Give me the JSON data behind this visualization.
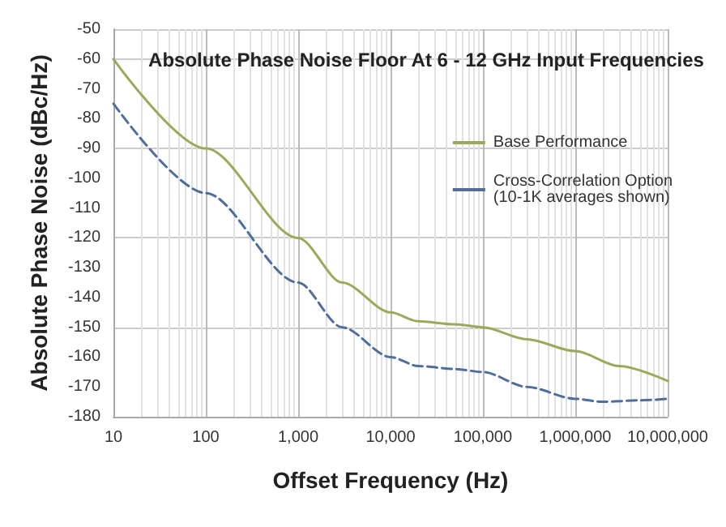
{
  "chart_data": {
    "type": "line",
    "title": "Absolute Phase Noise Floor At 6 - 12 GHz Input Frequencies",
    "xlabel": "Offset Frequency (Hz)",
    "ylabel": "Absolute Phase Noise (dBc/Hz)",
    "log": "x",
    "grid": true,
    "legend": "top right",
    "marker": "none",
    "xlim": [
      10,
      10000000
    ],
    "xticks": [
      {
        "value": 10,
        "label": "10"
      },
      {
        "value": 100,
        "label": "100"
      },
      {
        "value": 1000,
        "label": "1,000"
      },
      {
        "value": 10000,
        "label": "10,000"
      },
      {
        "value": 100000,
        "label": "100,000"
      },
      {
        "value": 1000000,
        "label": "1,000,000"
      },
      {
        "value": 10000000,
        "label": "10,000,000"
      }
    ],
    "ylim": [
      -180,
      -50
    ],
    "yticks": [
      -180,
      -170,
      -160,
      -150,
      -140,
      -130,
      -120,
      -110,
      -100,
      -90,
      -80,
      -70,
      -60,
      -50
    ],
    "series": [
      {
        "name": "Base Performance",
        "color": "#9aaa5a",
        "line_style": "solid",
        "x": [
          10,
          100,
          1000,
          3000,
          10000,
          20000,
          50000,
          100000,
          300000,
          1000000,
          3000000,
          10000000
        ],
        "values": [
          -60,
          -90,
          -120,
          -135,
          -145,
          -148,
          -149,
          -150,
          -154,
          -158,
          -163,
          -168
        ]
      },
      {
        "name": "Cross-Correlation Option\n(10-1K averages shown)",
        "color": "#4f6f9a",
        "line_style": "dashed",
        "x": [
          10,
          100,
          1000,
          3000,
          10000,
          20000,
          50000,
          100000,
          300000,
          1000000,
          2000000,
          5000000,
          10000000
        ],
        "values": [
          -75,
          -105,
          -135,
          -150,
          -160,
          -163,
          -164,
          -165,
          -170,
          -174,
          -175,
          -174.5,
          -174
        ]
      }
    ]
  }
}
